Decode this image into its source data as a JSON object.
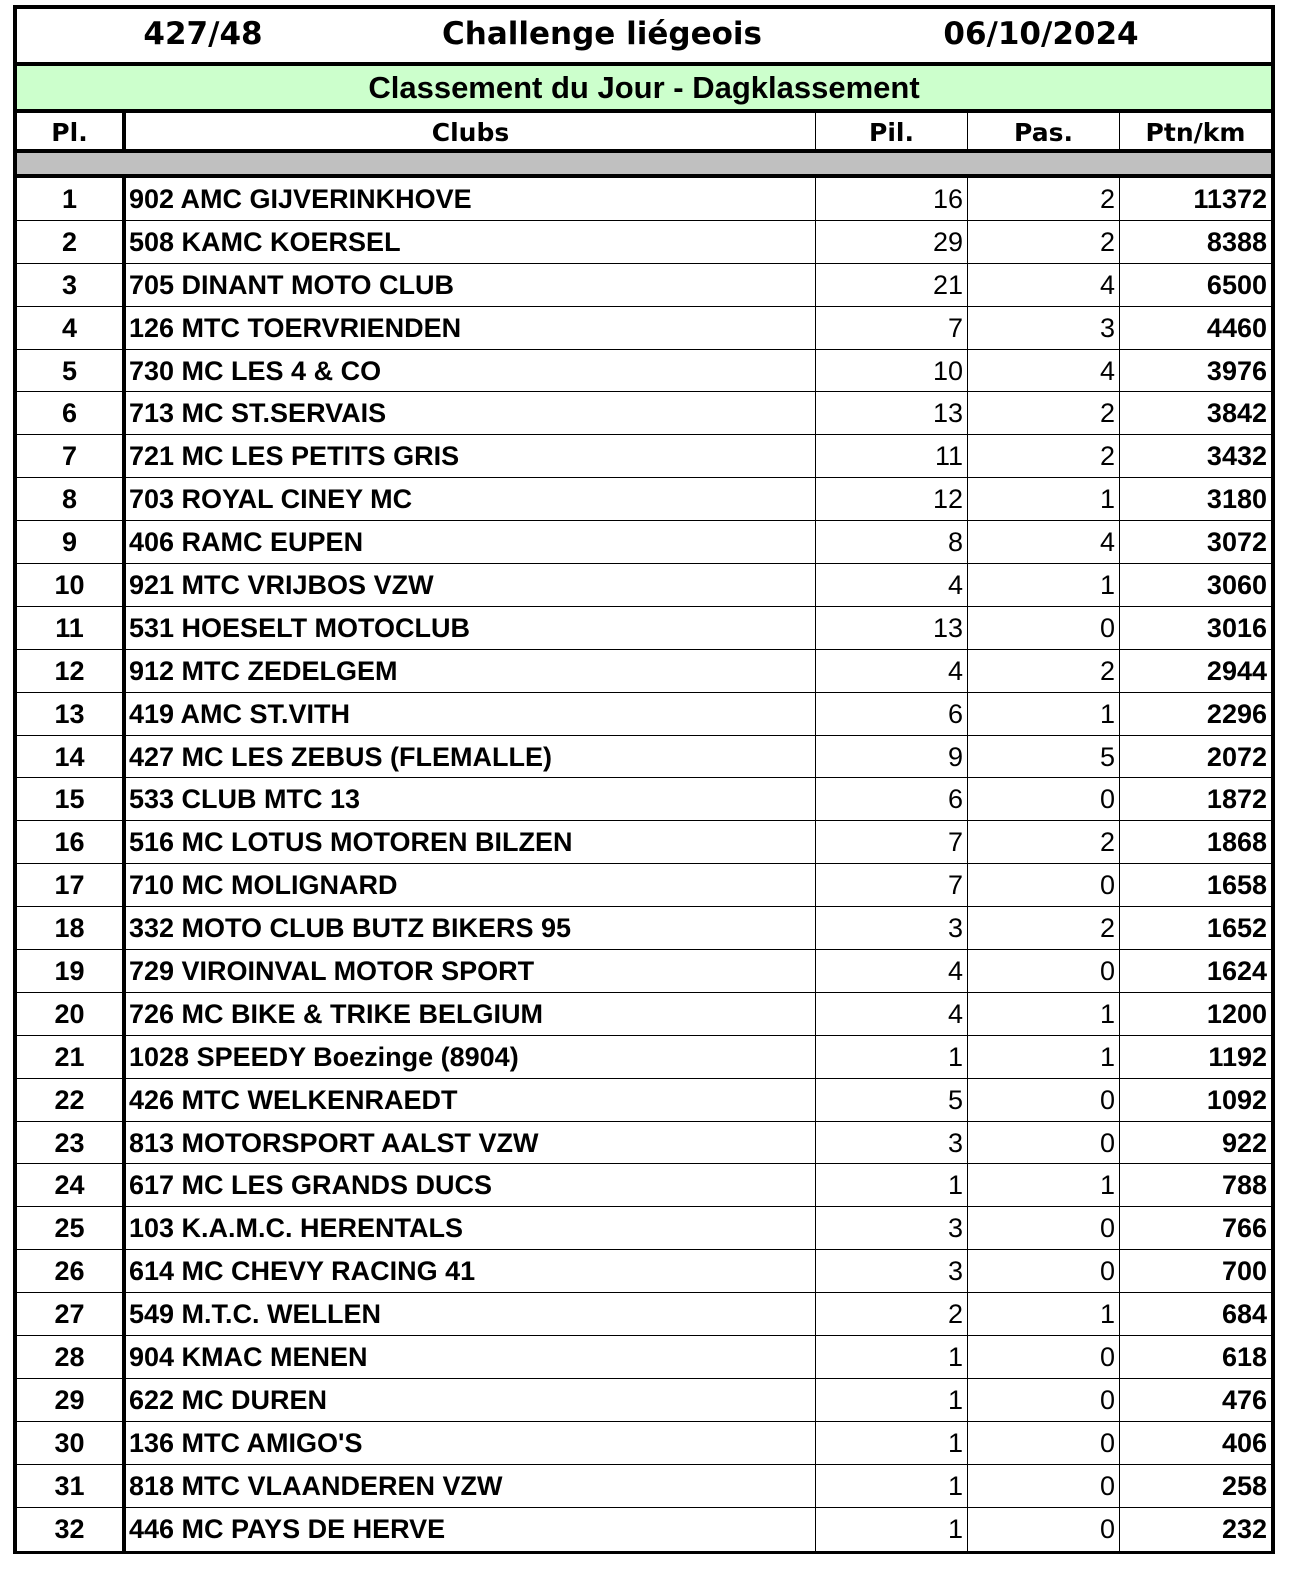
{
  "header": {
    "code": "427/48",
    "title": "Challenge liégeois",
    "date": "06/10/2024"
  },
  "subtitle": "Classement du Jour - Dagklassement",
  "colors": {
    "subtitle_bg": "#ccffcc",
    "separator_bg": "#c0c0c0"
  },
  "columns": [
    "Pl.",
    "Clubs",
    "Pil.",
    "Pas.",
    "Ptn/km"
  ],
  "rows": [
    [
      "1",
      "902 AMC GIJVERINKHOVE",
      "16",
      "2",
      "11372"
    ],
    [
      "2",
      "508 KAMC KOERSEL",
      "29",
      "2",
      "8388"
    ],
    [
      "3",
      "705 DINANT MOTO CLUB",
      "21",
      "4",
      "6500"
    ],
    [
      "4",
      "126 MTC TOERVRIENDEN",
      "7",
      "3",
      "4460"
    ],
    [
      "5",
      "730 MC LES 4 & CO",
      "10",
      "4",
      "3976"
    ],
    [
      "6",
      "713 MC ST.SERVAIS",
      "13",
      "2",
      "3842"
    ],
    [
      "7",
      "721 MC LES PETITS GRIS",
      "11",
      "2",
      "3432"
    ],
    [
      "8",
      "703 ROYAL CINEY MC",
      "12",
      "1",
      "3180"
    ],
    [
      "9",
      "406 RAMC EUPEN",
      "8",
      "4",
      "3072"
    ],
    [
      "10",
      "921 MTC VRIJBOS VZW",
      "4",
      "1",
      "3060"
    ],
    [
      "11",
      "531 HOESELT MOTOCLUB",
      "13",
      "0",
      "3016"
    ],
    [
      "12",
      "912 MTC ZEDELGEM",
      "4",
      "2",
      "2944"
    ],
    [
      "13",
      "419 AMC ST.VITH",
      "6",
      "1",
      "2296"
    ],
    [
      "14",
      "427 MC LES ZEBUS (FLEMALLE)",
      "9",
      "5",
      "2072"
    ],
    [
      "15",
      "533 CLUB MTC 13",
      "6",
      "0",
      "1872"
    ],
    [
      "16",
      "516 MC LOTUS MOTOREN BILZEN",
      "7",
      "2",
      "1868"
    ],
    [
      "17",
      "710 MC MOLIGNARD",
      "7",
      "0",
      "1658"
    ],
    [
      "18",
      "332 MOTO CLUB BUTZ BIKERS 95",
      "3",
      "2",
      "1652"
    ],
    [
      "19",
      "729 VIROINVAL MOTOR SPORT",
      "4",
      "0",
      "1624"
    ],
    [
      "20",
      "726 MC BIKE & TRIKE BELGIUM",
      "4",
      "1",
      "1200"
    ],
    [
      "21",
      "1028 SPEEDY Boezinge (8904)",
      "1",
      "1",
      "1192"
    ],
    [
      "22",
      "426 MTC WELKENRAEDT",
      "5",
      "0",
      "1092"
    ],
    [
      "23",
      "813 MOTORSPORT AALST VZW",
      "3",
      "0",
      "922"
    ],
    [
      "24",
      "617 MC LES GRANDS DUCS",
      "1",
      "1",
      "788"
    ],
    [
      "25",
      "103 K.A.M.C. HERENTALS",
      "3",
      "0",
      "766"
    ],
    [
      "26",
      "614 MC CHEVY RACING 41",
      "3",
      "0",
      "700"
    ],
    [
      "27",
      "549 M.T.C. WELLEN",
      "2",
      "1",
      "684"
    ],
    [
      "28",
      "904 KMAC MENEN",
      "1",
      "0",
      "618"
    ],
    [
      "29",
      "622 MC DUREN",
      "1",
      "0",
      "476"
    ],
    [
      "30",
      "136 MTC AMIGO'S",
      "1",
      "0",
      "406"
    ],
    [
      "31",
      "818 MTC VLAANDEREN VZW",
      "1",
      "0",
      "258"
    ],
    [
      "32",
      "446 MC PAYS DE HERVE",
      "1",
      "0",
      "232"
    ]
  ]
}
